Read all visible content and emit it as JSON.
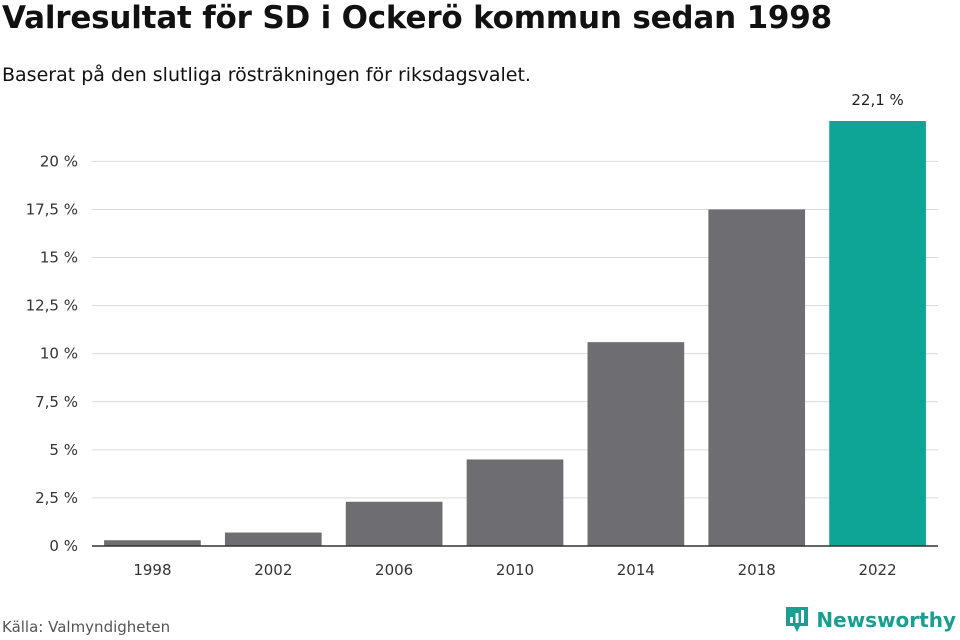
{
  "title": "Valresultat för SD i Ockerö kommun sedan 1998",
  "subtitle": "Baserat på den slutliga rösträkningen för riksdagsvalet.",
  "source": "Källa: Valmyndigheten",
  "brand": {
    "name": "Newsworthy",
    "icon": "newsworthy-logo-icon",
    "color": "#1a9e8f"
  },
  "chart_data": {
    "type": "bar",
    "categories": [
      "1998",
      "2002",
      "2006",
      "2010",
      "2014",
      "2018",
      "2022"
    ],
    "values": [
      0.3,
      0.7,
      2.3,
      4.5,
      10.6,
      17.5,
      22.1
    ],
    "ylim": [
      0,
      22.1
    ],
    "yticks": [
      {
        "value": 0,
        "label": "0 %"
      },
      {
        "value": 2.5,
        "label": "2,5 %"
      },
      {
        "value": 5,
        "label": "5 %"
      },
      {
        "value": 7.5,
        "label": "7,5 %"
      },
      {
        "value": 10,
        "label": "10 %"
      },
      {
        "value": 12.5,
        "label": "12,5 %"
      },
      {
        "value": 15,
        "label": "15 %"
      },
      {
        "value": 17.5,
        "label": "17,5 %"
      },
      {
        "value": 20,
        "label": "20 %"
      }
    ],
    "data_labels": [
      {
        "index": 6,
        "label": "22,1 %"
      }
    ],
    "colors": {
      "default": "#6e6d72",
      "highlight": "#0fa596",
      "grid": "#d9d9d9",
      "axis": "#333333"
    },
    "highlight_index": 6,
    "grid": true,
    "legend": "none"
  }
}
